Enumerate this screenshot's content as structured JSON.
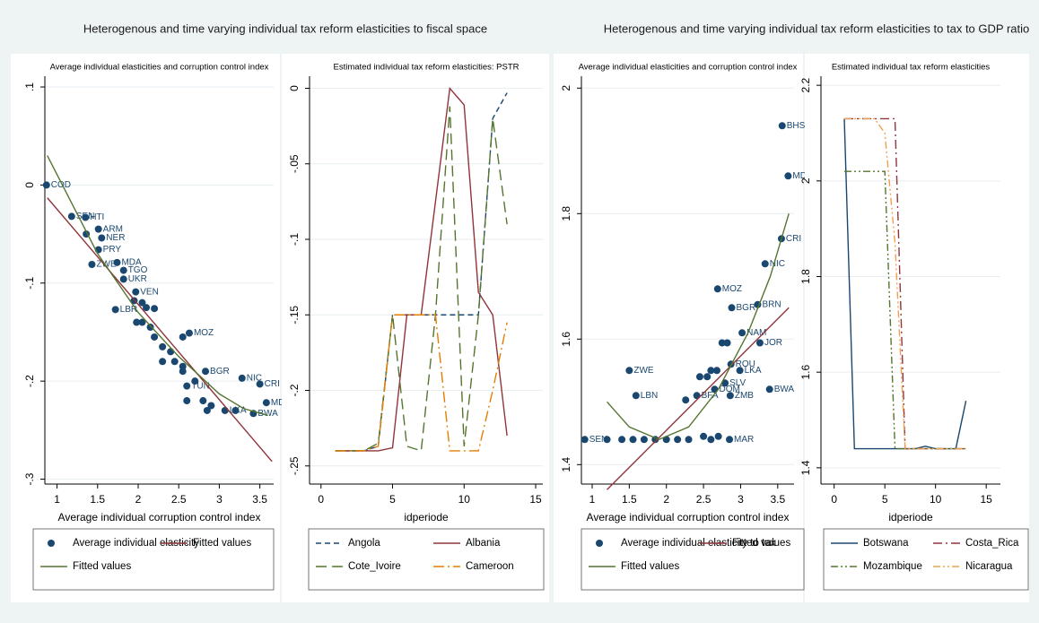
{
  "headers": [
    "Heterogenous and time varying individual tax reform elasticities to fiscal space",
    "Heterogenous and time varying individual tax reform elasticities to tax to GDP ratio"
  ],
  "chart_data": [
    {
      "type": "scatter",
      "title": "Average individual elasticities and corruption control index",
      "xlabel": "Average individual corruption control index",
      "xlim": [
        0.85,
        3.67
      ],
      "ylim": [
        -0.305,
        0.111
      ],
      "xticks": [
        1,
        1.5,
        2,
        2.5,
        3,
        3.5
      ],
      "yticks": [
        {
          "value": -0.3,
          "label": "-.3"
        },
        {
          "value": -0.2,
          "label": "-.2"
        },
        {
          "value": -0.1,
          "label": "-.1"
        },
        0,
        {
          "value": 0.1,
          "label": ".1"
        }
      ],
      "grid": true,
      "legend": "bottom",
      "series": [
        {
          "name": "Average individual elasticity",
          "color": "#1a476f",
          "mode": "markers",
          "x": [
            0.87,
            1.18,
            1.35,
            1.36,
            1.51,
            1.55,
            1.51,
            1.43,
            1.74,
            1.82,
            1.82,
            1.97,
            1.95,
            2.05,
            2.1,
            1.72,
            2.2,
            1.98,
            2.05,
            2.15,
            2.2,
            2.63,
            2.55,
            2.3,
            2.4,
            2.45,
            2.55,
            2.3,
            2.83,
            2.55,
            2.6,
            2.7,
            2.6,
            2.8,
            2.9,
            2.85,
            3.07,
            3.28,
            3.5,
            3.58,
            3.42,
            3.2
          ],
          "values": [
            0.0,
            -0.032,
            -0.033,
            -0.05,
            -0.045,
            -0.054,
            -0.066,
            -0.081,
            -0.079,
            -0.087,
            -0.096,
            -0.109,
            -0.118,
            -0.12,
            -0.125,
            -0.127,
            -0.126,
            -0.14,
            -0.14,
            -0.145,
            -0.155,
            -0.151,
            -0.155,
            -0.165,
            -0.17,
            -0.18,
            -0.185,
            -0.18,
            -0.19,
            -0.19,
            -0.205,
            -0.2,
            -0.22,
            -0.22,
            -0.225,
            -0.23,
            -0.23,
            -0.197,
            -0.203,
            -0.222,
            -0.233,
            -0.23
          ],
          "labels": [
            "COD",
            "SEN",
            "HTI",
            null,
            "ARM",
            "NER",
            "PRY",
            "ZWE",
            "MDA",
            "TGO",
            "UKR",
            "VEN",
            null,
            null,
            null,
            "LBR",
            null,
            null,
            null,
            null,
            null,
            "MOZ",
            null,
            null,
            null,
            null,
            null,
            null,
            "BGR",
            null,
            "TUN",
            null,
            null,
            null,
            null,
            null,
            "LKA",
            "NIC",
            "CRI",
            "MD",
            "BWA",
            null
          ]
        },
        {
          "name": "Fitted values",
          "color": "#90353b",
          "mode": "lines",
          "x": [
            0.88,
            3.65
          ],
          "values": [
            -0.013,
            -0.282
          ]
        },
        {
          "name": "Fitted values",
          "color": "#55752f",
          "mode": "lines",
          "x": [
            0.88,
            1.5,
            2,
            2.5,
            3,
            3.3,
            3.6
          ],
          "values": [
            0.03,
            -0.07,
            -0.13,
            -0.175,
            -0.213,
            -0.228,
            -0.235
          ]
        }
      ]
    },
    {
      "type": "line",
      "title": "Estimated individual  tax reform elasticities: PSTR",
      "xlabel": "idperiode",
      "x": [
        1,
        2,
        3,
        4,
        5,
        6,
        7,
        8,
        9,
        10,
        11,
        12,
        13
      ],
      "xlim": [
        -0.8,
        15.5
      ],
      "ylim": [
        -0.262,
        0.008
      ],
      "xticks": [
        0,
        5,
        10,
        15
      ],
      "yticks": [
        {
          "value": -0.25,
          "label": "-.25"
        },
        {
          "value": -0.2,
          "label": "-.2"
        },
        {
          "value": -0.15,
          "label": "-.15"
        },
        {
          "value": -0.1,
          "label": "-.1"
        },
        {
          "value": -0.05,
          "label": "-.05"
        },
        0
      ],
      "grid": true,
      "legend": "bottom",
      "series": [
        {
          "name": "Angola",
          "color": "#1a476f",
          "dash": "6,4",
          "values": [
            -0.24,
            -0.24,
            -0.24,
            -0.237,
            -0.15,
            -0.15,
            -0.15,
            -0.15,
            -0.15,
            -0.15,
            -0.15,
            -0.02,
            -0.003
          ]
        },
        {
          "name": "Albania",
          "color": "#90353b",
          "dash": "",
          "values": [
            -0.24,
            -0.24,
            -0.24,
            -0.24,
            -0.238,
            -0.15,
            -0.15,
            -0.075,
            0.0,
            -0.011,
            -0.135,
            -0.15,
            -0.23
          ]
        },
        {
          "name": "Cote_Ivoire",
          "color": "#55752f",
          "dash": "12,6",
          "values": [
            -0.24,
            -0.24,
            -0.24,
            -0.235,
            -0.15,
            -0.237,
            -0.24,
            -0.15,
            -0.012,
            -0.237,
            -0.15,
            -0.02,
            -0.09
          ]
        },
        {
          "name": "Cameroon",
          "color": "#e37e00",
          "dash": "12,4,2,4",
          "values": [
            -0.24,
            -0.24,
            -0.24,
            -0.237,
            -0.15,
            -0.15,
            -0.15,
            -0.15,
            -0.24,
            -0.24,
            -0.24,
            -0.2,
            -0.155
          ]
        }
      ]
    },
    {
      "type": "scatter",
      "title": "Average individual elasticities and corruption control index",
      "xlabel": "Average individual corruption control index",
      "xlim": [
        0.855,
        3.72
      ],
      "ylim": [
        1.369,
        2.019
      ],
      "xticks": [
        1,
        1.5,
        2,
        2.5,
        3,
        3.5
      ],
      "yticks": [
        1.4,
        1.6,
        1.8,
        2
      ],
      "grid": true,
      "legend": "bottom",
      "series": [
        {
          "name": "Average individual elasticity to tax",
          "color": "#1a476f",
          "mode": "markers",
          "x": [
            3.56,
            3.64,
            3.55,
            3.33,
            2.69,
            3.23,
            2.88,
            3.02,
            3.26,
            2.75,
            2.82,
            1.5,
            2.87,
            2.99,
            2.6,
            2.68,
            2.45,
            2.55,
            2.79,
            3.39,
            2.65,
            1.59,
            2.86,
            2.41,
            2.26,
            0.9,
            1.2,
            1.4,
            1.55,
            1.7,
            1.85,
            2.0,
            2.15,
            2.3,
            2.5,
            2.6,
            2.7,
            2.85
          ],
          "values": [
            1.94,
            1.86,
            1.76,
            1.72,
            1.68,
            1.655,
            1.65,
            1.61,
            1.594,
            1.594,
            1.594,
            1.55,
            1.56,
            1.55,
            1.55,
            1.55,
            1.54,
            1.54,
            1.53,
            1.52,
            1.52,
            1.51,
            1.51,
            1.51,
            1.503,
            1.44,
            1.44,
            1.44,
            1.44,
            1.44,
            1.44,
            1.44,
            1.44,
            1.44,
            1.445,
            1.44,
            1.445,
            1.44
          ],
          "labels": [
            "BHS",
            "MD",
            "CRI",
            "NIC",
            "MOZ",
            "BRN",
            "BGR",
            "NAM",
            "JOR",
            null,
            null,
            "ZWE",
            "ROU",
            "LKA",
            null,
            null,
            null,
            null,
            "SLV",
            "BWA",
            "DOM",
            "LBN",
            "ZMB",
            "BFA",
            null,
            "SEN",
            null,
            null,
            null,
            null,
            null,
            null,
            null,
            null,
            null,
            null,
            null,
            "MAR"
          ]
        },
        {
          "name": "Fitted values",
          "color": "#90353b",
          "mode": "lines",
          "x": [
            1.2,
            3.65
          ],
          "values": [
            1.36,
            1.65
          ]
        },
        {
          "name": "Fitted values",
          "color": "#55752f",
          "mode": "lines",
          "x": [
            1.2,
            1.5,
            1.9,
            2.3,
            2.7,
            3.1,
            3.4,
            3.65
          ],
          "values": [
            1.5,
            1.46,
            1.44,
            1.46,
            1.52,
            1.61,
            1.7,
            1.8
          ]
        }
      ]
    },
    {
      "type": "line",
      "title": "Estimated individual  tax reform elasticities",
      "xlabel": "idperiode",
      "x": [
        1,
        2,
        3,
        4,
        5,
        6,
        7,
        8,
        9,
        10,
        11,
        12,
        13
      ],
      "xlim": [
        -1.3,
        16.4
      ],
      "ylim": [
        1.366,
        2.219
      ],
      "xticks": [
        0,
        5,
        10,
        15
      ],
      "yticks": [
        1.4,
        1.6,
        1.8,
        2,
        2.2
      ],
      "grid": true,
      "legend": "bottom",
      "series": [
        {
          "name": "Botswana",
          "color": "#1a476f",
          "dash": "",
          "values": [
            2.13,
            1.44,
            1.44,
            1.44,
            1.44,
            1.44,
            1.44,
            1.44,
            1.445,
            1.44,
            1.44,
            1.44,
            1.54
          ]
        },
        {
          "name": "Costa_Rica",
          "color": "#90353b",
          "dash": "10,4,2,4",
          "values": [
            2.13,
            2.13,
            2.13,
            2.13,
            2.13,
            2.13,
            1.44,
            1.44,
            1.44,
            1.44,
            1.44,
            1.44,
            1.44
          ]
        },
        {
          "name": "Mozambique",
          "color": "#55752f",
          "dash": "8,3,2,3,2,3",
          "values": [
            2.02,
            2.02,
            2.02,
            2.02,
            2.02,
            1.44,
            1.44,
            1.44,
            1.44,
            1.44,
            1.44,
            1.44,
            1.44
          ]
        },
        {
          "name": "Nicaragua",
          "color": "#f0a050",
          "dash": "8,3,2,3,2,3",
          "values": [
            2.13,
            2.13,
            2.13,
            2.13,
            2.1,
            1.87,
            1.44,
            1.44,
            1.44,
            1.44,
            1.44,
            1.44,
            1.44
          ]
        }
      ]
    }
  ]
}
